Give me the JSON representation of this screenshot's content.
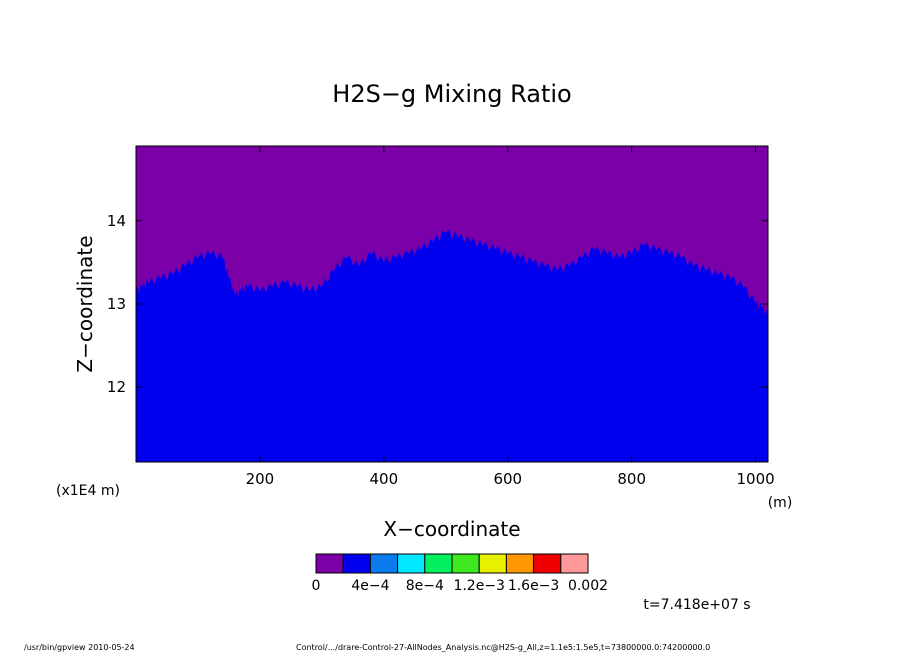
{
  "chart_data": {
    "type": "heatmap",
    "title": "H2S−g Mixing Ratio",
    "xlabel": "X−coordinate",
    "ylabel": "Z−coordinate",
    "x_unit": "(m)",
    "y_unit": "(x1E4 m)",
    "xlim": [
      0,
      1020
    ],
    "ylim": [
      11.1,
      14.9
    ],
    "x_ticks": [
      200,
      400,
      600,
      800,
      1000
    ],
    "x_tick_labels": [
      "200",
      "400",
      "600",
      "800",
      "1000"
    ],
    "y_ticks": [
      12,
      13,
      14
    ],
    "y_tick_labels": [
      "12",
      "13",
      "14"
    ],
    "grid": false,
    "levels": [
      0,
      0.0002,
      0.0004,
      0.0006,
      0.0008,
      0.001,
      0.0012,
      0.0014,
      0.0016,
      0.0018,
      0.002
    ],
    "colorbar_labels": [
      "0",
      "4e−4",
      "8e−4",
      "1.2e−3",
      "1.6e−3",
      "0.002"
    ],
    "colors": [
      "#7b00a8",
      "#0000ee",
      "#0a7cf0",
      "#00e8ff",
      "#00f060",
      "#40e820",
      "#e8f000",
      "#ff9800",
      "#f00000",
      "#ff9898"
    ],
    "boundary_x": [
      0,
      10,
      20,
      40,
      60,
      80,
      100,
      120,
      140,
      150,
      160,
      170,
      180,
      200,
      220,
      240,
      260,
      280,
      300,
      320,
      340,
      360,
      380,
      400,
      420,
      440,
      460,
      480,
      500,
      520,
      540,
      560,
      580,
      600,
      620,
      640,
      660,
      680,
      700,
      720,
      740,
      760,
      780,
      800,
      820,
      840,
      860,
      880,
      900,
      920,
      940,
      960,
      980,
      1000,
      1010,
      1020
    ],
    "boundary_z": [
      13.15,
      13.2,
      13.25,
      13.3,
      13.35,
      13.45,
      13.55,
      13.6,
      13.55,
      13.3,
      13.1,
      13.15,
      13.2,
      13.15,
      13.2,
      13.25,
      13.2,
      13.15,
      13.2,
      13.4,
      13.55,
      13.45,
      13.6,
      13.5,
      13.55,
      13.6,
      13.65,
      13.75,
      13.85,
      13.8,
      13.75,
      13.7,
      13.65,
      13.6,
      13.55,
      13.5,
      13.45,
      13.4,
      13.45,
      13.55,
      13.65,
      13.6,
      13.55,
      13.6,
      13.7,
      13.65,
      13.6,
      13.55,
      13.45,
      13.4,
      13.35,
      13.3,
      13.2,
      13.0,
      12.95,
      12.85
    ],
    "value_above_boundary": 0,
    "value_below_boundary": 0.0003
  },
  "time_label": "t=7.418e+07 s",
  "footer_left": "/usr/bin/gpview   2010-05-24",
  "footer_right": "Control/.../drare-Control-27-AllNodes_Analysis.nc@H2S-g_All,z=1.1e5:1.5e5,t=73800000.0:74200000.0"
}
